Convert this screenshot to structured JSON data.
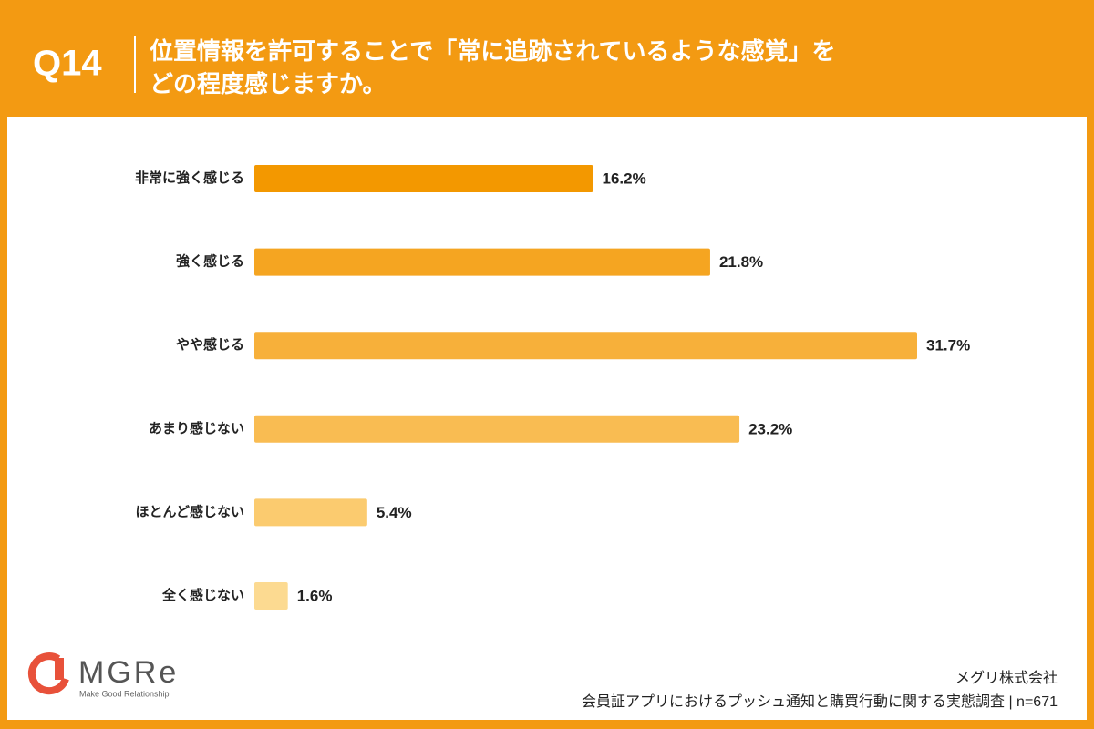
{
  "chart_data": {
    "type": "bar",
    "orientation": "horizontal",
    "question_number": "Q14",
    "title": [
      "位置情報を許可することで「常に追跡されているような感覚」を",
      "どの程度感じますか。"
    ],
    "categories": [
      "非常に強く感じる",
      "強く感じる",
      "やや感じる",
      "あまり感じない",
      "ほとんど感じない",
      "全く感じない"
    ],
    "values": [
      16.2,
      21.8,
      31.7,
      23.2,
      5.4,
      1.6
    ],
    "value_labels": [
      "16.2%",
      "21.8%",
      "31.7%",
      "23.2%",
      "5.4%",
      "1.6%"
    ],
    "colors": [
      "#f39800",
      "#f5a521",
      "#f7b03a",
      "#f9bc52",
      "#fbcb6f",
      "#fcda91"
    ],
    "grid": false
  },
  "logo": {
    "name": "MGRe",
    "tagline": "Make Good Relationship"
  },
  "footer": {
    "company": "メグリ株式会社",
    "source": "会員証アプリにおけるプッシュ通知と購買行動に関する実態調査 | n=671"
  }
}
